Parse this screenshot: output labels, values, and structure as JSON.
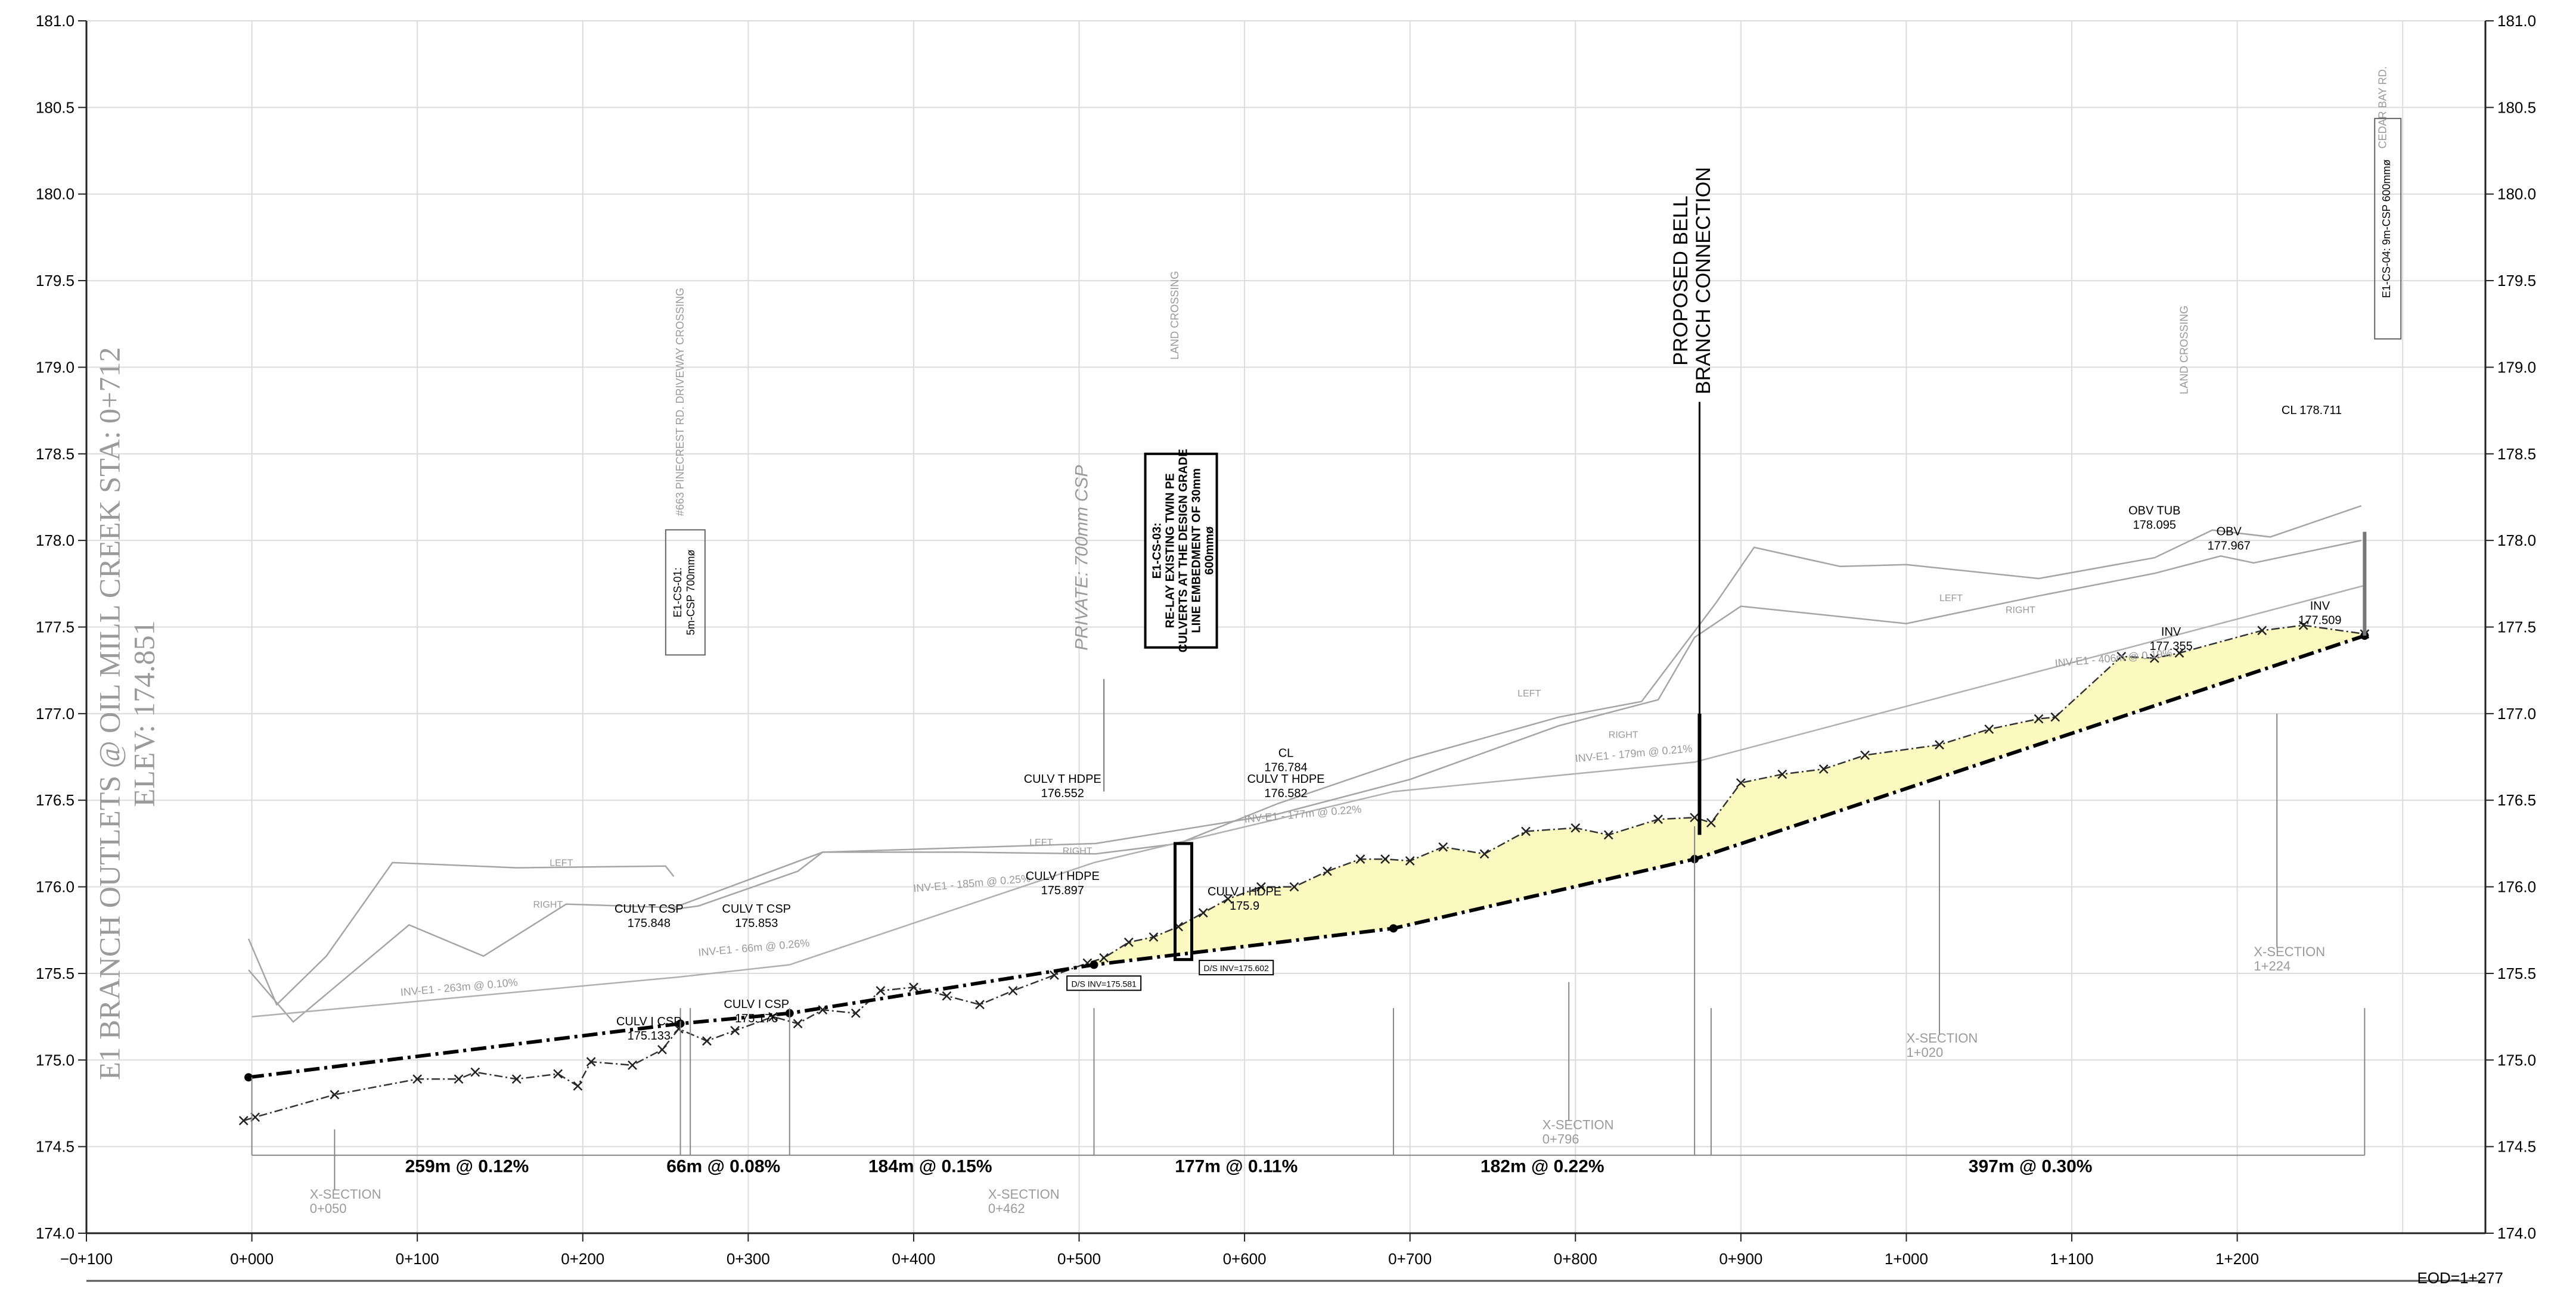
{
  "chart_data": {
    "type": "line",
    "xlim": [
      -100,
      1350
    ],
    "ylim": [
      174.0,
      181.0
    ],
    "x_ticks": [
      -100,
      0,
      100,
      200,
      300,
      400,
      500,
      600,
      700,
      800,
      900,
      1000,
      1100,
      1200,
      1277
    ],
    "x_tick_labels": [
      "−0+100",
      "0+000",
      "0+100",
      "0+200",
      "0+300",
      "0+400",
      "0+500",
      "0+600",
      "0+700",
      "0+800",
      "0+900",
      "1+000",
      "1+100",
      "1+200"
    ],
    "y_ticks": [
      174.0,
      174.5,
      175.0,
      175.5,
      176.0,
      176.5,
      177.0,
      177.5,
      178.0,
      178.5,
      179.0,
      179.5,
      180.0,
      180.5,
      181.0
    ],
    "y_tick_labels": [
      "174.0",
      "174.5",
      "175.0",
      "175.5",
      "176.0",
      "176.5",
      "177.0",
      "177.5",
      "178.0",
      "178.5",
      "179.0",
      "179.5",
      "180.0",
      "180.5",
      "181.0"
    ],
    "eod_label": "EOD=1+277",
    "title_lines": [
      "E1 BRANCH OUTLETS @ OIL MILL CREEK STA: 0+712",
      "ELEV: 174.851"
    ],
    "series": [
      {
        "id": "design-invert",
        "points": [
          [
            -2,
            174.9
          ],
          [
            259,
            175.21
          ],
          [
            325,
            175.27
          ],
          [
            509,
            175.55
          ],
          [
            690,
            175.76
          ],
          [
            872,
            176.16
          ],
          [
            1277,
            177.45
          ]
        ]
      },
      {
        "id": "existing-ground",
        "points": [
          [
            -5,
            174.65
          ],
          [
            2,
            174.67
          ],
          [
            50,
            174.8
          ],
          [
            100,
            174.89
          ],
          [
            125,
            174.89
          ],
          [
            135,
            174.93
          ],
          [
            160,
            174.89
          ],
          [
            185,
            174.92
          ],
          [
            197,
            174.85
          ],
          [
            205,
            174.99
          ],
          [
            230,
            174.97
          ],
          [
            248,
            175.06
          ],
          [
            258,
            175.18
          ],
          [
            275,
            175.11
          ],
          [
            292,
            175.17
          ],
          [
            315,
            175.25
          ],
          [
            330,
            175.21
          ],
          [
            345,
            175.29
          ],
          [
            365,
            175.27
          ],
          [
            380,
            175.4
          ],
          [
            400,
            175.42
          ],
          [
            420,
            175.37
          ],
          [
            440,
            175.32
          ],
          [
            460,
            175.4
          ],
          [
            485,
            175.49
          ],
          [
            505,
            175.56
          ],
          [
            515,
            175.59
          ],
          [
            530,
            175.68
          ],
          [
            545,
            175.71
          ],
          [
            560,
            175.77
          ],
          [
            575,
            175.85
          ],
          [
            590,
            175.93
          ],
          [
            610,
            176.0
          ],
          [
            630,
            176.0
          ],
          [
            650,
            176.09
          ],
          [
            670,
            176.16
          ],
          [
            685,
            176.16
          ],
          [
            700,
            176.15
          ],
          [
            720,
            176.23
          ],
          [
            745,
            176.19
          ],
          [
            770,
            176.32
          ],
          [
            800,
            176.34
          ],
          [
            820,
            176.3
          ],
          [
            850,
            176.39
          ],
          [
            872,
            176.4
          ],
          [
            882,
            176.37
          ],
          [
            900,
            176.6
          ],
          [
            925,
            176.65
          ],
          [
            950,
            176.68
          ],
          [
            975,
            176.76
          ],
          [
            1020,
            176.82
          ],
          [
            1050,
            176.91
          ],
          [
            1080,
            176.97
          ],
          [
            1090,
            176.98
          ],
          [
            1130,
            177.33
          ],
          [
            1150,
            177.32
          ],
          [
            1165,
            177.35
          ],
          [
            1215,
            177.48
          ],
          [
            1240,
            177.51
          ],
          [
            1277,
            177.46
          ]
        ]
      },
      {
        "id": "left-bank",
        "points": [
          [
            -2,
            175.7
          ],
          [
            15,
            175.32
          ],
          [
            45,
            175.6
          ],
          [
            85,
            176.14
          ],
          [
            160,
            176.11
          ],
          [
            250,
            176.12
          ],
          [
            255,
            176.06
          ]
        ]
      },
      {
        "id": "right-bank",
        "points": [
          [
            -2,
            175.52
          ],
          [
            25,
            175.22
          ],
          [
            95,
            175.78
          ],
          [
            140,
            175.6
          ],
          [
            190,
            175.9
          ],
          [
            255,
            175.88
          ],
          [
            345,
            176.2
          ],
          [
            510,
            176.25
          ],
          [
            620,
            176.42
          ],
          [
            700,
            176.62
          ],
          [
            790,
            176.93
          ],
          [
            850,
            177.08
          ],
          [
            872,
            177.44
          ],
          [
            900,
            177.62
          ],
          [
            1000,
            177.52
          ],
          [
            1080,
            177.68
          ],
          [
            1150,
            177.81
          ],
          [
            1190,
            177.91
          ],
          [
            1210,
            177.87
          ],
          [
            1275,
            178.0
          ]
        ]
      },
      {
        "id": "left-top",
        "points": [
          [
            255,
            175.87
          ],
          [
            270,
            175.89
          ],
          [
            330,
            176.09
          ],
          [
            345,
            176.2
          ],
          [
            430,
            176.2
          ],
          [
            510,
            176.19
          ],
          [
            560,
            176.25
          ],
          [
            620,
            176.48
          ],
          [
            700,
            176.74
          ],
          [
            790,
            176.98
          ],
          [
            840,
            177.07
          ],
          [
            885,
            177.64
          ],
          [
            908,
            177.96
          ],
          [
            960,
            177.85
          ],
          [
            1000,
            177.86
          ],
          [
            1080,
            177.78
          ],
          [
            1150,
            177.9
          ],
          [
            1185,
            178.06
          ],
          [
            1220,
            178.02
          ],
          [
            1275,
            178.2
          ]
        ]
      },
      {
        "id": "invert-guide",
        "points": [
          [
            0,
            175.25
          ],
          [
            259,
            175.48
          ],
          [
            325,
            175.55
          ],
          [
            509,
            176.14
          ],
          [
            690,
            176.55
          ],
          [
            872,
            176.72
          ],
          [
            1277,
            177.74
          ]
        ]
      }
    ],
    "segments": [
      {
        "label": "259m @ 0.12%",
        "x": 130
      },
      {
        "label": "66m @ 0.08%",
        "x": 285
      },
      {
        "label": "184m @ 0.15%",
        "x": 410
      },
      {
        "label": "177m @ 0.11%",
        "x": 595
      },
      {
        "label": "182m @ 0.22%",
        "x": 780
      },
      {
        "label": "397m @ 0.30%",
        "x": 1075
      }
    ],
    "invert_labels": [
      {
        "label": "INV-E1 - 263m @ 0.10%",
        "x": 90,
        "y": 175.37
      },
      {
        "label": "INV-E1 - 66m @ 0.26%",
        "x": 270,
        "y": 175.6
      },
      {
        "label": "INV-E1 - 185m @ 0.25%",
        "x": 400,
        "y": 175.97
      },
      {
        "label": "INV-E1 - 177m @ 0.22%",
        "x": 600,
        "y": 176.37
      },
      {
        "label": "INV-E1 - 179m @ 0.21%",
        "x": 800,
        "y": 176.72
      },
      {
        "label": "INV-E1 - 406m @ 0.19%",
        "x": 1090,
        "y": 177.27
      }
    ],
    "grey_notes": [
      {
        "label": "LEFT",
        "x": 180,
        "y": 176.12
      },
      {
        "label": "RIGHT",
        "x": 170,
        "y": 175.88
      },
      {
        "label": "LEFT",
        "x": 470,
        "y": 176.24
      },
      {
        "label": "RIGHT",
        "x": 490,
        "y": 176.19
      },
      {
        "label": "LEFT",
        "x": 765,
        "y": 177.1
      },
      {
        "label": "RIGHT",
        "x": 820,
        "y": 176.86
      },
      {
        "label": "LEFT",
        "x": 1020,
        "y": 177.65
      },
      {
        "label": "RIGHT",
        "x": 1060,
        "y": 177.58
      }
    ],
    "crossings": [
      {
        "label": "#663 PINECREST RD. DRIVEWAY CROSSING",
        "x": 261,
        "y": 178.8
      },
      {
        "label": "LAND CROSSING",
        "x": 560,
        "y": 179.3
      },
      {
        "label": "LAND CROSSING",
        "x": 1170,
        "y": 179.1
      },
      {
        "label": "CEDAR BAY RD.",
        "x": 1290,
        "y": 180.5
      }
    ],
    "boxed_labels": [
      {
        "lines": [
          "E1-CS-01:",
          "5m-CSP 700mmø"
        ],
        "x": 262,
        "y": 177.7
      },
      {
        "lines": [
          "E1-CS-04: 9m-CSP 600mmø"
        ],
        "x": 1291,
        "y": 179.8
      }
    ],
    "private_label": "PRIVATE: 700mm CSP",
    "cs03_box": [
      "E1-CS-03:",
      "RE-LAY EXISTING TWIN PE",
      "CULVERTS AT THE DESIGN GRADE",
      "LINE EMBEDMENT OF 30mm",
      "600mmø"
    ],
    "connection": [
      "PROPOSED BELL",
      "BRANCH CONNECTION"
    ],
    "x_sections": [
      {
        "label": [
          "X-SECTION",
          "0+050"
        ],
        "x": 35,
        "y": 174.2
      },
      {
        "label": [
          "X-SECTION",
          "0+462"
        ],
        "x": 445,
        "y": 174.2
      },
      {
        "label": [
          "X-SECTION",
          "0+796"
        ],
        "x": 780,
        "y": 174.6
      },
      {
        "label": [
          "X-SECTION",
          "1+020"
        ],
        "x": 1000,
        "y": 175.1
      },
      {
        "label": [
          "X-SECTION",
          "1+224"
        ],
        "x": 1210,
        "y": 175.6
      }
    ],
    "callouts": [
      {
        "lines": [
          "CULV T CSP",
          "175.848"
        ],
        "x": 240,
        "y": 175.85
      },
      {
        "lines": [
          "CULV T CSP",
          "175.853"
        ],
        "x": 305,
        "y": 175.85
      },
      {
        "lines": [
          "CULV I CSP",
          "175.133"
        ],
        "x": 240,
        "y": 175.2
      },
      {
        "lines": [
          "CULV I CSP",
          "175.176"
        ],
        "x": 305,
        "y": 175.3
      },
      {
        "lines": [
          "CULV T HDPE",
          "176.552"
        ],
        "x": 490,
        "y": 176.6
      },
      {
        "lines": [
          "CL",
          "176.784"
        ],
        "x": 625,
        "y": 176.75
      },
      {
        "lines": [
          "CULV T HDPE",
          "176.582"
        ],
        "x": 625,
        "y": 176.6
      },
      {
        "lines": [
          "CULV I HDPE",
          "175.897"
        ],
        "x": 490,
        "y": 176.04
      },
      {
        "lines": [
          "CULV I HDPE",
          "175.9"
        ],
        "x": 600,
        "y": 175.95
      },
      {
        "lines": [
          "OBV TUB",
          "178.095"
        ],
        "x": 1150,
        "y": 178.15
      },
      {
        "lines": [
          "OBV",
          "177.967"
        ],
        "x": 1195,
        "y": 178.03
      },
      {
        "lines": [
          "INV",
          "177.355"
        ],
        "x": 1160,
        "y": 177.45
      },
      {
        "lines": [
          "INV",
          "177.509"
        ],
        "x": 1250,
        "y": 177.6
      },
      {
        "lines": [
          "CL 178.711"
        ],
        "x": 1245,
        "y": 178.73
      }
    ],
    "inv_boxes": [
      {
        "label": "D/S INV=175.581",
        "x": 515,
        "y": 175.43
      },
      {
        "label": "D/S INV=175.602",
        "x": 595,
        "y": 175.52
      }
    ]
  }
}
